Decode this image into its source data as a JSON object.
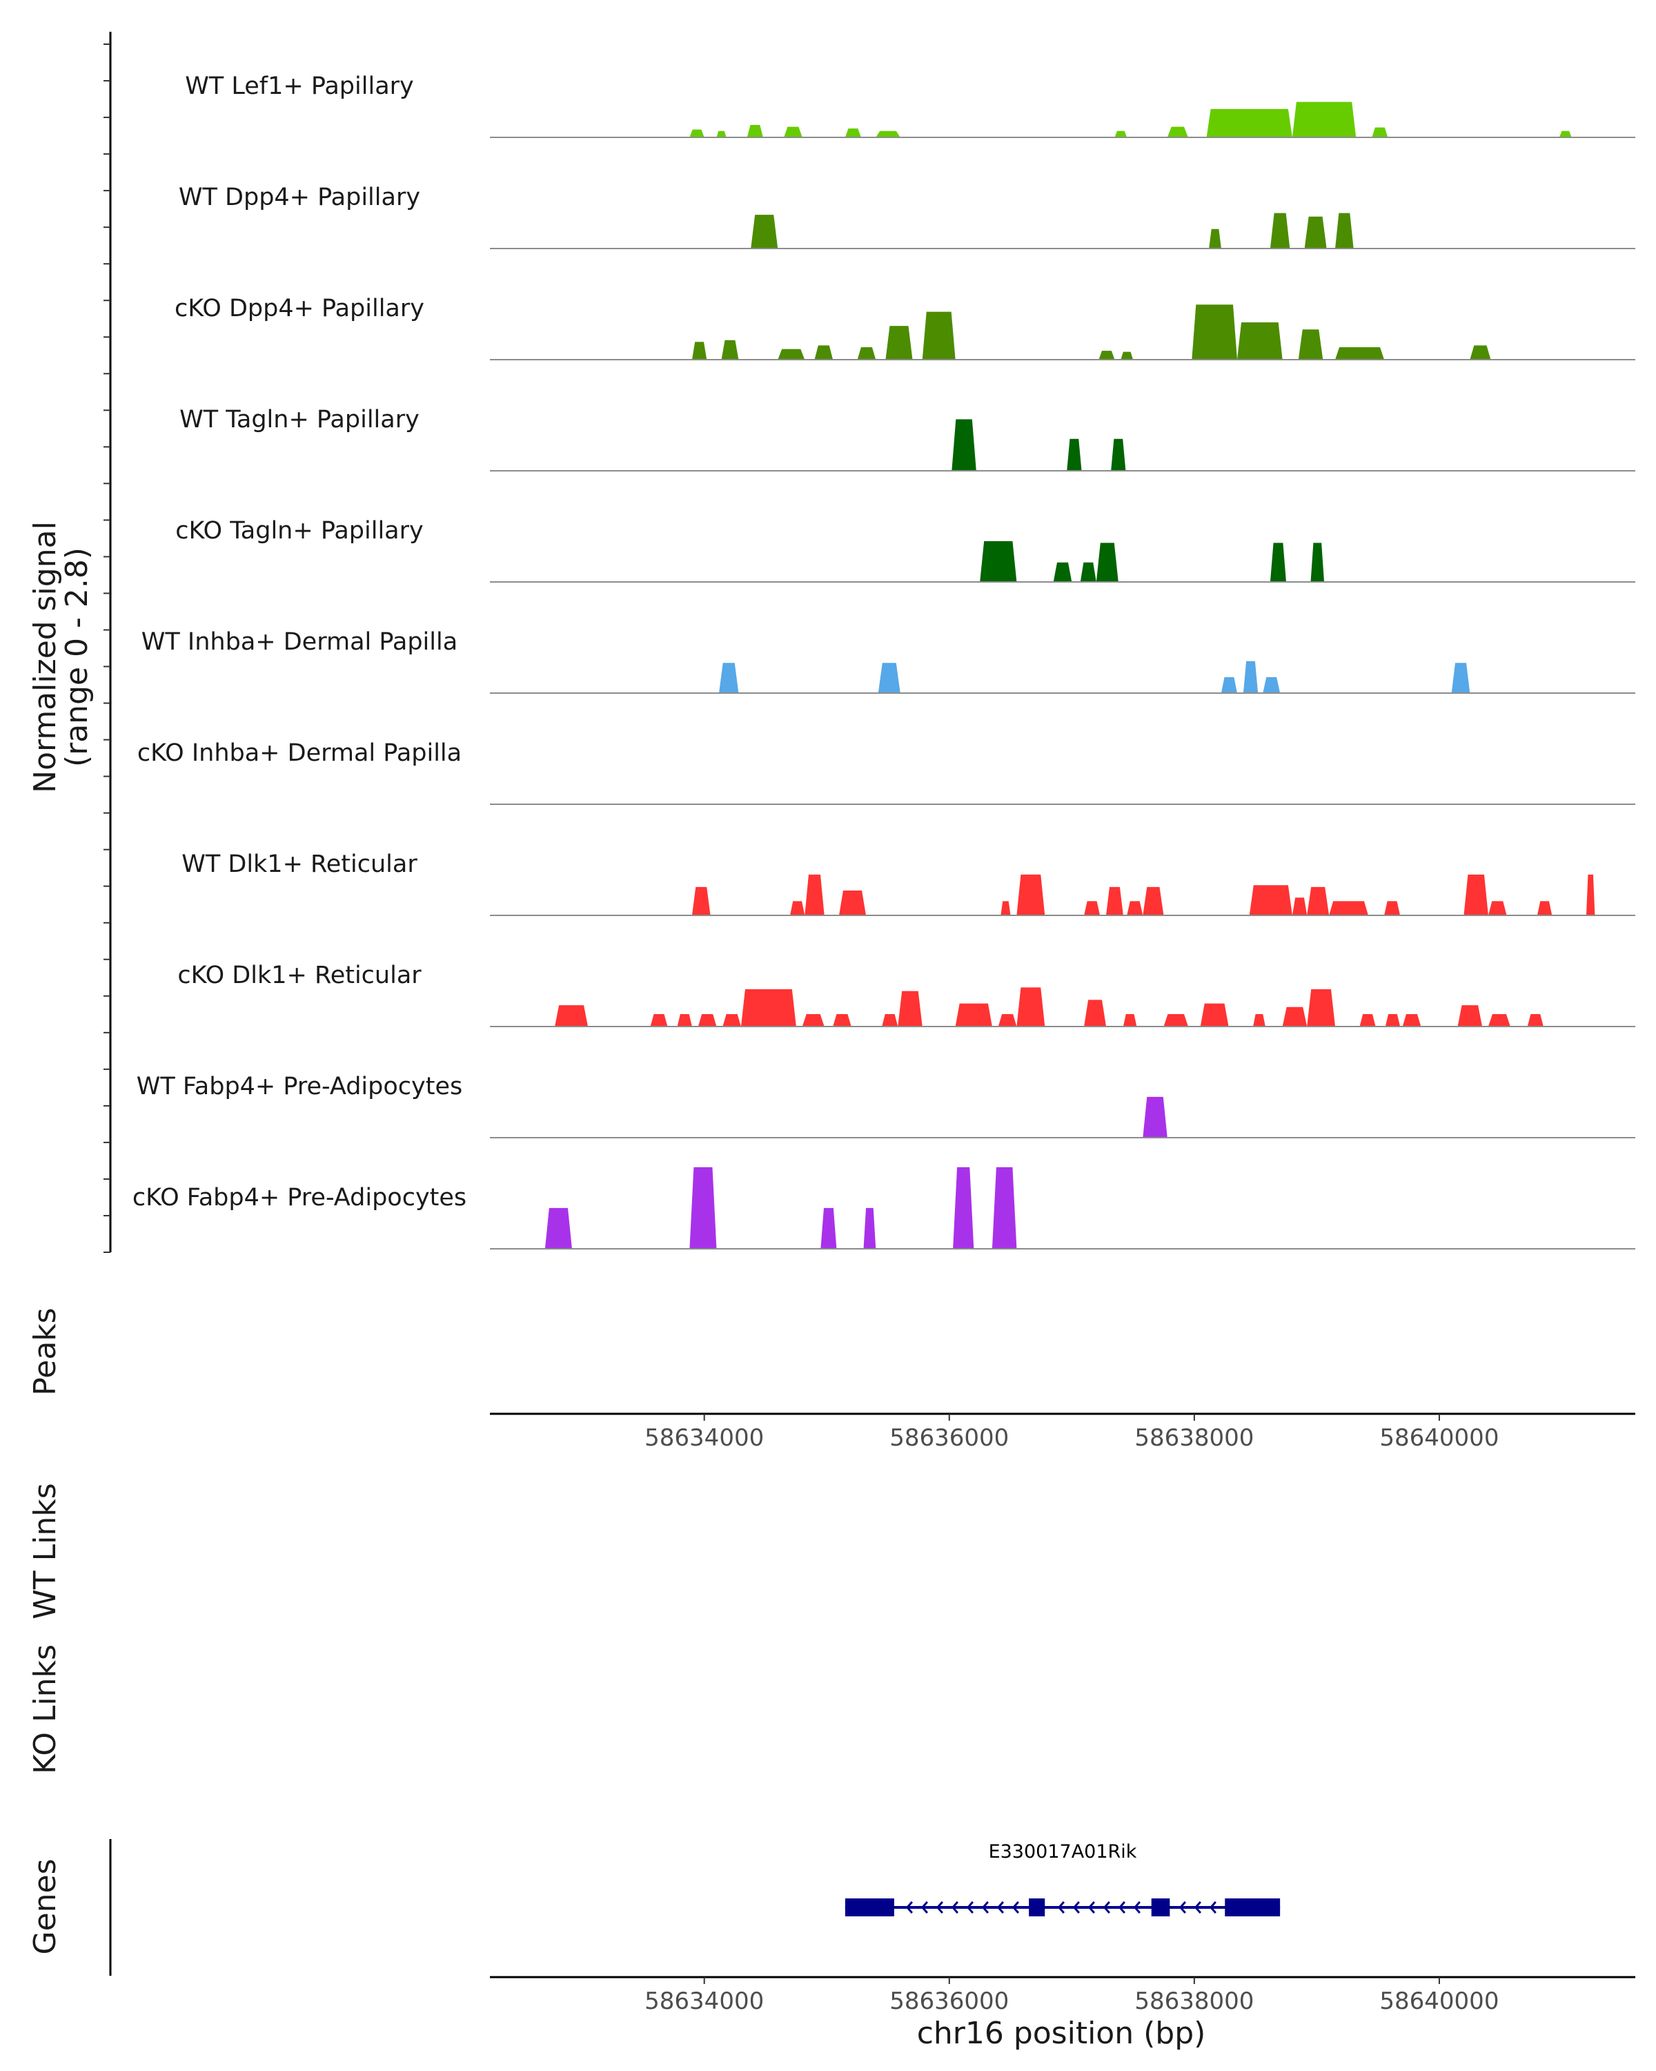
{
  "chart_data": {
    "type": "area",
    "title": "",
    "chromosome": "chr16",
    "xlabel": "chr16 position (bp)",
    "xlim": [
      58632250,
      58641600
    ],
    "xticks": [
      58634000,
      58636000,
      58638000,
      58640000
    ],
    "xtick_labels": [
      "58634000",
      "58636000",
      "58638000",
      "58640000"
    ],
    "ylabel_line1": "Normalized signal",
    "ylabel_line2": "(range 0 - 2.8)",
    "ylim": [
      0,
      2.8
    ],
    "side_labels": {
      "peaks": "Peaks",
      "wt_links": "WT Links",
      "ko_links": "KO Links",
      "genes": "Genes"
    },
    "gene": {
      "name": "E330017A01Rik",
      "start": 58635150,
      "end": 58638700,
      "strand": "-",
      "color": "#00008b",
      "exons": [
        [
          58635150,
          58635550
        ],
        [
          58636650,
          58636780
        ],
        [
          58637650,
          58637800
        ],
        [
          58638250,
          58638700
        ]
      ]
    },
    "series": [
      {
        "name": "WT Lef1+ Papillary",
        "color": "#66cc00",
        "peaks": [
          [
            58633880,
            58634000,
            0.22
          ],
          [
            58634100,
            58634180,
            0.18
          ],
          [
            58634350,
            58634480,
            0.35
          ],
          [
            58634650,
            58634800,
            0.3
          ],
          [
            58635150,
            58635280,
            0.25
          ],
          [
            58635400,
            58635600,
            0.18
          ],
          [
            58637350,
            58637450,
            0.18
          ],
          [
            58637780,
            58637950,
            0.3
          ],
          [
            58638100,
            58638800,
            0.8
          ],
          [
            58638800,
            58639320,
            1.0
          ],
          [
            58639450,
            58639580,
            0.28
          ],
          [
            58640980,
            58641080,
            0.18
          ]
        ]
      },
      {
        "name": "WT Dpp4+ Papillary",
        "color": "#4c8c00",
        "peaks": [
          [
            58634380,
            58634600,
            0.95
          ],
          [
            58638120,
            58638220,
            0.55
          ],
          [
            58638620,
            58638780,
            1.0
          ],
          [
            58638900,
            58639080,
            0.9
          ],
          [
            58639150,
            58639300,
            1.0
          ]
        ]
      },
      {
        "name": "cKO Dpp4+ Papillary",
        "color": "#4c8c00",
        "peaks": [
          [
            58633900,
            58634020,
            0.5
          ],
          [
            58634140,
            58634280,
            0.55
          ],
          [
            58634600,
            58634820,
            0.3
          ],
          [
            58634900,
            58635050,
            0.4
          ],
          [
            58635250,
            58635400,
            0.35
          ],
          [
            58635480,
            58635700,
            0.95
          ],
          [
            58635780,
            58636050,
            1.35
          ],
          [
            58637220,
            58637350,
            0.25
          ],
          [
            58637400,
            58637500,
            0.22
          ],
          [
            58637980,
            58638350,
            1.55
          ],
          [
            58638350,
            58638720,
            1.05
          ],
          [
            58638850,
            58639050,
            0.85
          ],
          [
            58639150,
            58639550,
            0.35
          ],
          [
            58640250,
            58640420,
            0.4
          ]
        ]
      },
      {
        "name": "WT Tagln+ Papillary",
        "color": "#006400",
        "peaks": [
          [
            58636020,
            58636220,
            1.45
          ],
          [
            58636960,
            58637080,
            0.9
          ],
          [
            58637320,
            58637440,
            0.9
          ]
        ]
      },
      {
        "name": "cKO Tagln+ Papillary",
        "color": "#006400",
        "peaks": [
          [
            58636250,
            58636550,
            1.15
          ],
          [
            58636850,
            58637000,
            0.55
          ],
          [
            58637070,
            58637200,
            0.55
          ],
          [
            58637200,
            58637380,
            1.1
          ],
          [
            58638620,
            58638750,
            1.1
          ],
          [
            58638950,
            58639060,
            1.1
          ]
        ]
      },
      {
        "name": "WT Inhba+ Dermal Papilla",
        "color": "#56a8e8",
        "peaks": [
          [
            58634120,
            58634280,
            0.85
          ],
          [
            58635420,
            58635600,
            0.85
          ],
          [
            58638220,
            58638350,
            0.45
          ],
          [
            58638400,
            58638520,
            0.9
          ],
          [
            58638560,
            58638700,
            0.45
          ],
          [
            58640100,
            58640250,
            0.85
          ]
        ]
      },
      {
        "name": "cKO Inhba+ Dermal Papilla",
        "color": "#56a8e8",
        "peaks": []
      },
      {
        "name": "WT Dlk1+ Reticular",
        "color": "#ff3333",
        "peaks": [
          [
            58633900,
            58634050,
            0.8
          ],
          [
            58634700,
            58634820,
            0.4
          ],
          [
            58634820,
            58634980,
            1.15
          ],
          [
            58635100,
            58635320,
            0.7
          ],
          [
            58636420,
            58636500,
            0.4
          ],
          [
            58636550,
            58636780,
            1.15
          ],
          [
            58637100,
            58637230,
            0.4
          ],
          [
            58637280,
            58637420,
            0.8
          ],
          [
            58637450,
            58637580,
            0.4
          ],
          [
            58637580,
            58637750,
            0.8
          ],
          [
            58638450,
            58638800,
            0.85
          ],
          [
            58638800,
            58638920,
            0.5
          ],
          [
            58638920,
            58639100,
            0.8
          ],
          [
            58639100,
            58639420,
            0.4
          ],
          [
            58639550,
            58639680,
            0.4
          ],
          [
            58640200,
            58640400,
            1.15
          ],
          [
            58640400,
            58640550,
            0.4
          ],
          [
            58640800,
            58640920,
            0.4
          ],
          [
            58641200,
            58641270,
            1.15
          ]
        ]
      },
      {
        "name": "cKO Dlk1+ Reticular",
        "color": "#ff3333",
        "peaks": [
          [
            58632780,
            58633050,
            0.6
          ],
          [
            58633560,
            58633700,
            0.35
          ],
          [
            58633780,
            58633900,
            0.35
          ],
          [
            58633950,
            58634100,
            0.35
          ],
          [
            58634150,
            58634300,
            0.35
          ],
          [
            58634300,
            58634750,
            1.05
          ],
          [
            58634800,
            58634980,
            0.35
          ],
          [
            58635050,
            58635200,
            0.35
          ],
          [
            58635450,
            58635580,
            0.35
          ],
          [
            58635580,
            58635780,
            1.0
          ],
          [
            58636050,
            58636350,
            0.65
          ],
          [
            58636400,
            58636550,
            0.35
          ],
          [
            58636550,
            58636780,
            1.1
          ],
          [
            58637100,
            58637280,
            0.75
          ],
          [
            58637420,
            58637530,
            0.35
          ],
          [
            58637750,
            58637950,
            0.35
          ],
          [
            58638050,
            58638280,
            0.65
          ],
          [
            58638480,
            58638580,
            0.35
          ],
          [
            58638720,
            58638920,
            0.55
          ],
          [
            58638920,
            58639150,
            1.05
          ],
          [
            58639350,
            58639480,
            0.35
          ],
          [
            58639560,
            58639680,
            0.35
          ],
          [
            58639700,
            58639850,
            0.35
          ],
          [
            58640150,
            58640350,
            0.6
          ],
          [
            58640400,
            58640580,
            0.35
          ],
          [
            58640720,
            58640850,
            0.35
          ]
        ]
      },
      {
        "name": "WT Fabp4+ Pre-Adipocytes",
        "color": "#a832ea",
        "peaks": [
          [
            58637580,
            58637780,
            1.15
          ]
        ]
      },
      {
        "name": "cKO Fabp4+ Pre-Adipocytes",
        "color": "#a832ea",
        "peaks": [
          [
            58632700,
            58632920,
            1.15
          ],
          [
            58633880,
            58634100,
            2.3
          ],
          [
            58634950,
            58635080,
            1.15
          ],
          [
            58635300,
            58635400,
            1.15
          ],
          [
            58636030,
            58636200,
            2.3
          ],
          [
            58636350,
            58636550,
            2.3
          ]
        ]
      }
    ]
  }
}
